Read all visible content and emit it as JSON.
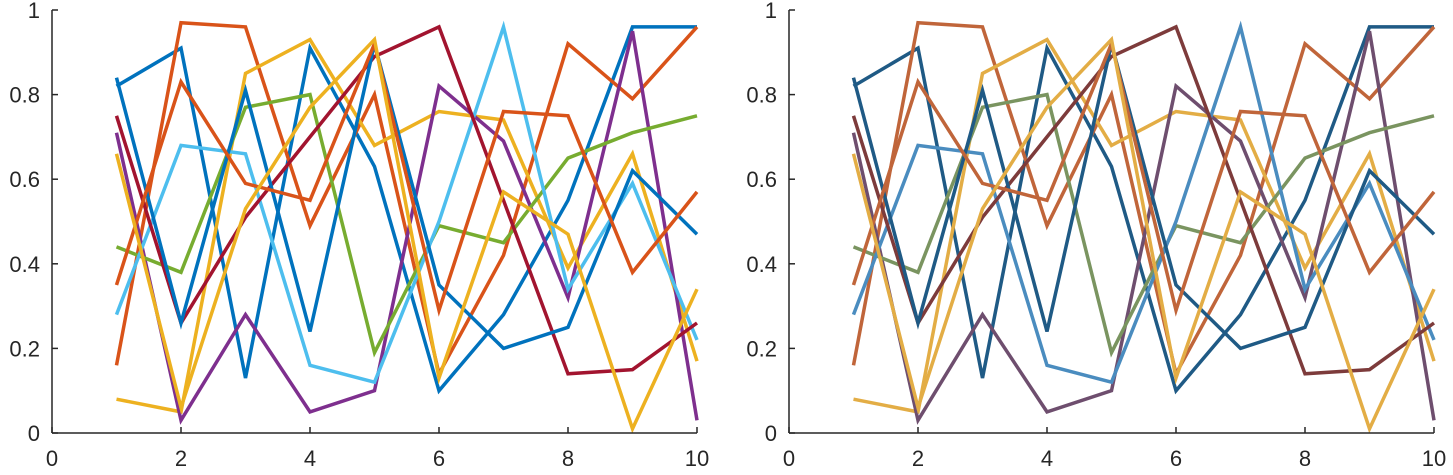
{
  "chart_data": [
    {
      "type": "line",
      "title": "",
      "xlabel": "",
      "ylabel": "",
      "xlim": [
        0,
        10
      ],
      "ylim": [
        0,
        1
      ],
      "xticks": [
        "0",
        "2",
        "4",
        "6",
        "8",
        "10"
      ],
      "yticks": [
        "0",
        "0.2",
        "0.4",
        "0.6",
        "0.8",
        "1"
      ],
      "x": [
        1,
        2,
        3,
        4,
        5,
        6,
        7,
        8,
        9,
        10
      ],
      "series": [
        {
          "color": "#0072BD",
          "values": [
            0.82,
            0.91,
            0.13,
            0.91,
            0.63,
            0.1,
            0.28,
            0.55,
            0.96,
            0.96
          ]
        },
        {
          "color": "#D95319",
          "values": [
            0.16,
            0.97,
            0.96,
            0.49,
            0.8,
            0.14,
            0.42,
            0.92,
            0.79,
            0.96
          ]
        },
        {
          "color": "#EDB120",
          "values": [
            0.08,
            0.05,
            0.85,
            0.93,
            0.68,
            0.76,
            0.74,
            0.39,
            0.66,
            0.17
          ]
        },
        {
          "color": "#7E2F8E",
          "values": [
            0.71,
            0.03,
            0.28,
            0.05,
            0.1,
            0.82,
            0.69,
            0.32,
            0.95,
            0.03
          ]
        },
        {
          "color": "#77AC30",
          "values": [
            0.44,
            0.38,
            0.77,
            0.8,
            0.19,
            0.49,
            0.45,
            0.65,
            0.71,
            0.75
          ]
        },
        {
          "color": "#4DBEEE",
          "values": [
            0.28,
            0.68,
            0.66,
            0.16,
            0.12,
            0.5,
            0.96,
            0.34,
            0.59,
            0.22
          ]
        },
        {
          "color": "#A2142F",
          "values": [
            0.75,
            0.26,
            0.51,
            0.7,
            0.89,
            0.96,
            0.55,
            0.14,
            0.15,
            0.26
          ]
        },
        {
          "color": "#0072BD",
          "values": [
            0.84,
            0.26,
            0.81,
            0.24,
            0.92,
            0.35,
            0.2,
            0.25,
            0.62,
            0.47
          ]
        },
        {
          "color": "#D95319",
          "values": [
            0.35,
            0.83,
            0.59,
            0.55,
            0.92,
            0.29,
            0.76,
            0.75,
            0.38,
            0.57
          ]
        },
        {
          "color": "#EDB120",
          "values": [
            0.66,
            0.06,
            0.53,
            0.77,
            0.93,
            0.13,
            0.57,
            0.47,
            0.01,
            0.34
          ]
        }
      ]
    },
    {
      "type": "line",
      "title": "",
      "xlabel": "",
      "ylabel": "",
      "xlim": [
        0,
        10
      ],
      "ylim": [
        0,
        1
      ],
      "xticks": [
        "0",
        "2",
        "4",
        "6",
        "8",
        "10"
      ],
      "yticks": [
        "0",
        "0.2",
        "0.4",
        "0.6",
        "0.8",
        "1"
      ],
      "x": [
        1,
        2,
        3,
        4,
        5,
        6,
        7,
        8,
        9,
        10
      ],
      "series": [
        {
          "color": "#1F5A85",
          "values": [
            0.82,
            0.91,
            0.13,
            0.91,
            0.63,
            0.1,
            0.28,
            0.55,
            0.96,
            0.96
          ]
        },
        {
          "color": "#C0653A",
          "values": [
            0.16,
            0.97,
            0.96,
            0.49,
            0.8,
            0.14,
            0.42,
            0.92,
            0.79,
            0.96
          ]
        },
        {
          "color": "#E3AD45",
          "values": [
            0.08,
            0.05,
            0.85,
            0.93,
            0.68,
            0.76,
            0.74,
            0.39,
            0.66,
            0.17
          ]
        },
        {
          "color": "#6E4E6E",
          "values": [
            0.71,
            0.03,
            0.28,
            0.05,
            0.1,
            0.82,
            0.69,
            0.32,
            0.95,
            0.03
          ]
        },
        {
          "color": "#7A9460",
          "values": [
            0.44,
            0.38,
            0.77,
            0.8,
            0.19,
            0.49,
            0.45,
            0.65,
            0.71,
            0.75
          ]
        },
        {
          "color": "#4A8CBF",
          "values": [
            0.28,
            0.68,
            0.66,
            0.16,
            0.12,
            0.5,
            0.96,
            0.34,
            0.59,
            0.22
          ]
        },
        {
          "color": "#7D3B3B",
          "values": [
            0.75,
            0.26,
            0.51,
            0.7,
            0.89,
            0.96,
            0.55,
            0.14,
            0.15,
            0.26
          ]
        },
        {
          "color": "#1F5A85",
          "values": [
            0.84,
            0.26,
            0.81,
            0.24,
            0.92,
            0.35,
            0.2,
            0.25,
            0.62,
            0.47
          ]
        },
        {
          "color": "#C0653A",
          "values": [
            0.35,
            0.83,
            0.59,
            0.55,
            0.92,
            0.29,
            0.76,
            0.75,
            0.38,
            0.57
          ]
        },
        {
          "color": "#E3AD45",
          "values": [
            0.66,
            0.06,
            0.53,
            0.77,
            0.93,
            0.13,
            0.57,
            0.47,
            0.01,
            0.34
          ]
        }
      ]
    }
  ]
}
